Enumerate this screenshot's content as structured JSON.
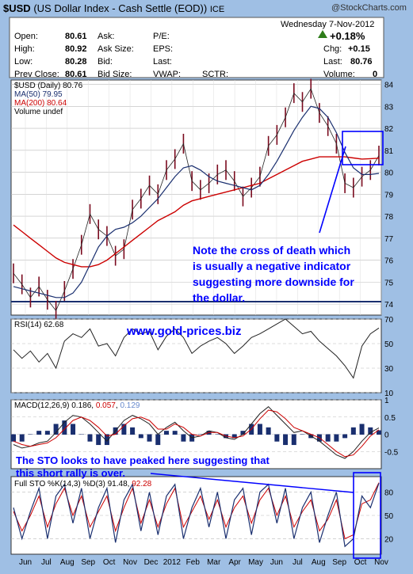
{
  "header": {
    "symbol": "$USD",
    "description": "(US Dollar Index - Cash Settle (EOD))",
    "exchange": "ICE",
    "watermark": "@StockCharts.com",
    "date": "Wednesday  7-Nov-2012",
    "change_pct": "+0.18%",
    "quote": {
      "open_label": "Open:",
      "open": "80.61",
      "high_label": "High:",
      "high": "80.92",
      "low_label": "Low:",
      "low": "80.28",
      "prevclose_label": "Prev Close:",
      "prevclose": "80.61",
      "ask_label": "Ask:",
      "asksize_label": "Ask Size:",
      "bid_label": "Bid:",
      "bidsize_label": "Bid Size:",
      "pe_label": "P/E:",
      "eps_label": "EPS:",
      "last_label": "Last:",
      "vwap_label": "VWAP:",
      "sctr_label": "SCTR:",
      "chg_label": "Chg:",
      "chg": "+0.15",
      "last2_label": "Last:",
      "last2": "80.76",
      "volume_label": "Volume:",
      "volume": "0"
    }
  },
  "legend": {
    "price": "$USD (Daily) 80.76",
    "ma50": "MA(50) 79.95",
    "ma200": "MA(200) 80.64",
    "volume": "Volume undef"
  },
  "annotations": {
    "cross": [
      "Note the cross of death which",
      "is usually a negative indicator",
      "suggesting more downside for",
      "the dollar."
    ],
    "site": "www.gold-prices.biz",
    "sto": [
      "The STO looks to have peaked here suggesting that",
      "this short rally is over."
    ]
  },
  "indicator_labels": {
    "rsi": "RSI(14) 62.68",
    "macd_prefix": "MACD(12,26,9) ",
    "macd_v1": "0.186",
    "macd_v2": "0.057",
    "macd_v3": "0.129",
    "sto_prefix": "Full STO %K(14,3) %D(3) ",
    "sto_v1": "91.48",
    "sto_v2": "92.28"
  },
  "colors": {
    "background": "#9fbfe4",
    "panel": "#ffffff",
    "price": "#7a0a1e",
    "ma50": "#1a2f6f",
    "ma200": "#cc0000",
    "annotation": "#0000ff",
    "up": "#2e7d1a"
  },
  "chart_data": {
    "type": "line",
    "months": [
      "Jun",
      "Jul",
      "Aug",
      "Sep",
      "Oct",
      "Nov",
      "Dec",
      "2012",
      "Feb",
      "Mar",
      "Apr",
      "May",
      "Jun",
      "Jul",
      "Aug",
      "Sep",
      "Oct",
      "Nov"
    ],
    "price_axis": {
      "ylim": [
        73.5,
        84.2
      ],
      "ticks": [
        74,
        75,
        76,
        77,
        78,
        79,
        80,
        81,
        82,
        83,
        84
      ]
    },
    "price": [
      75.4,
      74.9,
      74.3,
      74.8,
      74.2,
      73.7,
      74.6,
      75.6,
      76.7,
      78.1,
      77.4,
      77.1,
      76.2,
      76.5,
      78.3,
      78.8,
      79.4,
      79.0,
      80.1,
      80.6,
      81.3,
      79.6,
      79.2,
      79.5,
      79.9,
      80.1,
      79.6,
      78.9,
      79.3,
      79.8,
      81.2,
      81.7,
      82.5,
      83.6,
      83.2,
      83.8,
      82.7,
      82.1,
      81.3,
      79.5,
      79.3,
      79.8,
      80.1,
      80.76
    ],
    "ma50": [
      74.8,
      74.7,
      74.6,
      74.5,
      74.4,
      74.3,
      74.3,
      74.5,
      75.0,
      75.8,
      76.6,
      77.1,
      77.4,
      77.5,
      77.7,
      78.0,
      78.4,
      78.8,
      79.3,
      79.8,
      80.2,
      80.3,
      80.1,
      79.8,
      79.6,
      79.5,
      79.4,
      79.3,
      79.2,
      79.4,
      79.9,
      80.5,
      81.2,
      81.9,
      82.5,
      83.0,
      82.9,
      82.5,
      81.8,
      80.9,
      80.2,
      79.9,
      79.9,
      79.95
    ],
    "ma200": [
      77.6,
      77.3,
      77.0,
      76.7,
      76.4,
      76.1,
      75.9,
      75.8,
      75.7,
      75.7,
      75.8,
      76.0,
      76.3,
      76.6,
      76.9,
      77.2,
      77.5,
      77.8,
      78.0,
      78.2,
      78.5,
      78.7,
      78.8,
      78.9,
      79.0,
      79.1,
      79.2,
      79.3,
      79.4,
      79.5,
      79.7,
      79.9,
      80.1,
      80.3,
      80.5,
      80.6,
      80.7,
      80.7,
      80.7,
      80.7,
      80.65,
      80.6,
      80.62,
      80.64
    ],
    "rsi_axis": {
      "ylim": [
        10,
        70
      ],
      "ticks": [
        70,
        50,
        30,
        10
      ]
    },
    "rsi": [
      45,
      38,
      44,
      35,
      42,
      30,
      52,
      58,
      55,
      62,
      48,
      50,
      40,
      55,
      62,
      58,
      60,
      45,
      56,
      62,
      55,
      42,
      48,
      52,
      55,
      50,
      42,
      48,
      55,
      58,
      62,
      66,
      70,
      64,
      58,
      60,
      52,
      46,
      40,
      32,
      22,
      48,
      58,
      62.68
    ],
    "macd_axis": {
      "ylim": [
        -1.0,
        1.0
      ],
      "ticks": [
        1.0,
        0.5,
        0.0,
        -0.5
      ]
    },
    "macd": [
      -0.3,
      -0.4,
      -0.35,
      -0.25,
      -0.2,
      0.05,
      0.35,
      0.55,
      0.5,
      0.3,
      0.05,
      -0.2,
      0.1,
      0.4,
      0.55,
      0.45,
      0.3,
      0.0,
      0.2,
      0.35,
      0.1,
      -0.1,
      -0.05,
      0.1,
      0.05,
      -0.1,
      -0.15,
      0.0,
      0.3,
      0.6,
      0.8,
      0.55,
      0.3,
      0.05,
      0.1,
      -0.05,
      -0.2,
      -0.4,
      -0.6,
      -0.7,
      -0.5,
      -0.2,
      0.05,
      0.186
    ],
    "macd_signal": [
      -0.2,
      -0.3,
      -0.35,
      -0.3,
      -0.25,
      -0.1,
      0.15,
      0.4,
      0.5,
      0.4,
      0.2,
      -0.05,
      0.0,
      0.25,
      0.45,
      0.5,
      0.4,
      0.15,
      0.15,
      0.3,
      0.2,
      0.0,
      -0.05,
      0.05,
      0.05,
      -0.05,
      -0.1,
      -0.05,
      0.15,
      0.45,
      0.7,
      0.65,
      0.45,
      0.2,
      0.1,
      0.0,
      -0.1,
      -0.3,
      -0.5,
      -0.65,
      -0.6,
      -0.35,
      -0.05,
      0.129
    ],
    "sto_axis": {
      "ylim": [
        0,
        100
      ],
      "ticks": [
        80,
        50,
        20
      ]
    },
    "sto_k": [
      60,
      20,
      55,
      85,
      20,
      75,
      90,
      40,
      85,
      20,
      60,
      85,
      15,
      70,
      90,
      30,
      80,
      25,
      75,
      90,
      20,
      60,
      85,
      35,
      80,
      20,
      70,
      85,
      25,
      80,
      90,
      40,
      85,
      20,
      60,
      80,
      15,
      50,
      80,
      10,
      20,
      75,
      60,
      91.48
    ],
    "sto_d": [
      55,
      30,
      50,
      75,
      35,
      65,
      85,
      50,
      75,
      35,
      55,
      75,
      30,
      60,
      85,
      40,
      70,
      35,
      65,
      85,
      35,
      55,
      75,
      45,
      70,
      35,
      60,
      75,
      40,
      70,
      85,
      50,
      75,
      35,
      55,
      70,
      30,
      45,
      70,
      20,
      25,
      65,
      70,
      92.28
    ]
  }
}
